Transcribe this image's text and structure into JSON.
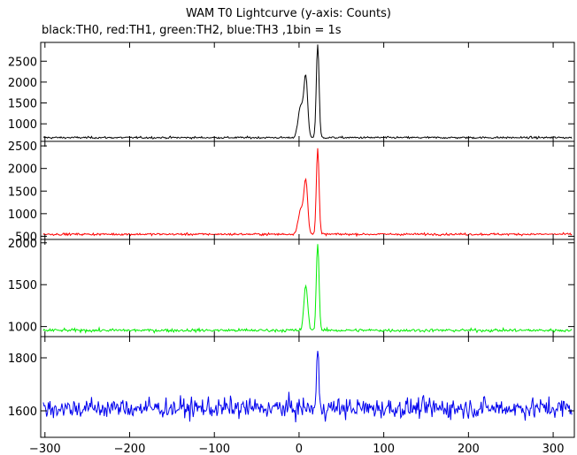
{
  "chart_data": {
    "type": "line",
    "title": "WAM T0 Lightcurve (y-axis: Counts)",
    "subtitle": "black:TH0, red:TH1, green:TH2, blue:TH3 ,1bin = 1s",
    "xlim": [
      -305,
      325
    ],
    "x_ticks": [
      -300,
      -200,
      -100,
      0,
      100,
      200,
      300
    ],
    "x_tick_labels": [
      "−300",
      "−200",
      "−100",
      "0",
      "100",
      "200",
      "300"
    ],
    "bin_seconds": 1,
    "panels": [
      {
        "series": "TH0",
        "color": "#000000",
        "ylim": [
          580,
          2950
        ],
        "yticks": [
          1000,
          1500,
          2000,
          2500
        ],
        "ytick_labels": [
          "1000",
          "1500",
          "2000",
          "2500"
        ],
        "baseline": 670,
        "noise": 28,
        "peaks": [
          {
            "x": 2,
            "height": 750,
            "width": 3
          },
          {
            "x": 8,
            "height": 1400,
            "width": 2.2
          },
          {
            "x": 22,
            "height": 2270,
            "width": 1.6
          }
        ],
        "visible_range": [
          600,
          2900
        ]
      },
      {
        "series": "TH1",
        "color": "#ff0000",
        "ylim": [
          430,
          2600
        ],
        "yticks": [
          500,
          1000,
          1500,
          2000,
          2500
        ],
        "ytick_labels": [
          "500",
          "1000",
          "1500",
          "2000",
          "2500"
        ],
        "baseline": 545,
        "noise": 28,
        "peaks": [
          {
            "x": 2,
            "height": 550,
            "width": 3
          },
          {
            "x": 8,
            "height": 1150,
            "width": 2.2
          },
          {
            "x": 22,
            "height": 1900,
            "width": 1.6
          }
        ],
        "visible_range": [
          450,
          2550
        ]
      },
      {
        "series": "TH2",
        "color": "#00ee00",
        "ylim": [
          880,
          2040
        ],
        "yticks": [
          1000,
          1500,
          2000
        ],
        "ytick_labels": [
          "1000",
          "1500",
          "2000"
        ],
        "baseline": 955,
        "noise": 22,
        "peaks": [
          {
            "x": 8,
            "height": 540,
            "width": 2.2
          },
          {
            "x": 22,
            "height": 1050,
            "width": 1.6
          }
        ],
        "visible_range": [
          890,
          2030
        ]
      },
      {
        "series": "TH3",
        "color": "#0000ee",
        "ylim": [
          1500,
          1880
        ],
        "yticks": [
          1600,
          1800
        ],
        "ytick_labels": [
          "1600",
          "1800"
        ],
        "baseline": 1610,
        "noise": 45,
        "peaks": [
          {
            "x": 22,
            "height": 230,
            "width": 1.2
          }
        ],
        "visible_range": [
          1510,
          1872
        ]
      }
    ]
  }
}
